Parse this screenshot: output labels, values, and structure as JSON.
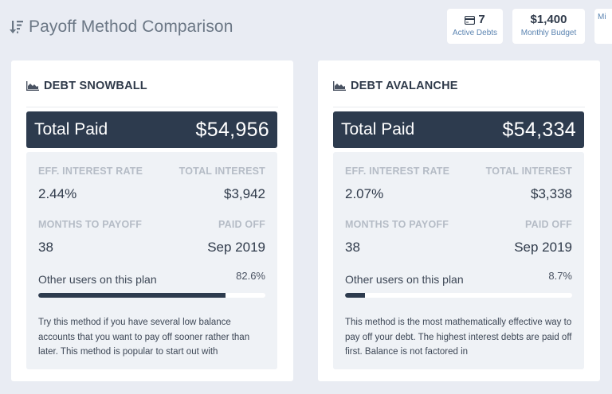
{
  "header": {
    "title": "Payoff Method Comparison",
    "icon": "sort-amount-down-icon"
  },
  "stats": [
    {
      "icon": "credit-card-icon",
      "value": "7",
      "label": "Active Debts"
    },
    {
      "value": "$1,400",
      "label": "Monthly Budget"
    },
    {
      "value": "",
      "label": "Mi"
    }
  ],
  "plans": [
    {
      "title": "DEBT SNOWBALL",
      "icon": "area-chart-icon",
      "total_label": "Total Paid",
      "total_value": "$54,956",
      "eff_rate_label": "EFF. INTEREST RATE",
      "eff_rate": "2.44%",
      "total_interest_label": "TOTAL INTEREST",
      "total_interest": "$3,942",
      "months_label": "MONTHS TO PAYOFF",
      "months": "38",
      "paid_off_label": "PAID OFF",
      "paid_off": "Sep 2019",
      "users_label": "Other users on this plan",
      "users_pct": "82.6%",
      "users_pct_num": 82.6,
      "description": "Try this method if you have several low balance accounts that you want to pay off sooner rather than later. This method is popular to start out with"
    },
    {
      "title": "DEBT AVALANCHE",
      "icon": "area-chart-icon",
      "total_label": "Total Paid",
      "total_value": "$54,334",
      "eff_rate_label": "EFF. INTEREST RATE",
      "eff_rate": "2.07%",
      "total_interest_label": "TOTAL INTEREST",
      "total_interest": "$3,338",
      "months_label": "MONTHS TO PAYOFF",
      "months": "38",
      "paid_off_label": "PAID OFF",
      "paid_off": "Sep 2019",
      "users_label": "Other users on this plan",
      "users_pct": "8.7%",
      "users_pct_num": 8.7,
      "description": "This method is the most mathematically effective way to pay off your debt. The highest interest debts are paid off first. Balance is not factored in"
    }
  ],
  "colors": {
    "background": "#e9ecf3",
    "primary_dark": "#2d3b4e",
    "link_blue": "#5b84b1",
    "label_gray": "#b5bcc6",
    "panel": "#eff2f6"
  }
}
